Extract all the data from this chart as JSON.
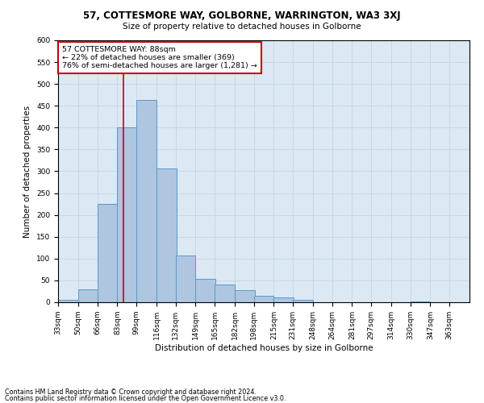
{
  "title1": "57, COTTESMORE WAY, GOLBORNE, WARRINGTON, WA3 3XJ",
  "title2": "Size of property relative to detached houses in Golborne",
  "xlabel": "Distribution of detached houses by size in Golborne",
  "ylabel": "Number of detached properties",
  "footer1": "Contains HM Land Registry data © Crown copyright and database right 2024.",
  "footer2": "Contains public sector information licensed under the Open Government Licence v3.0.",
  "annotation_line1": "57 COTTESMORE WAY: 88sqm",
  "annotation_line2": "← 22% of detached houses are smaller (369)",
  "annotation_line3": "76% of semi-detached houses are larger (1,281) →",
  "bar_left_edges": [
    33,
    50,
    66,
    83,
    99,
    116,
    132,
    149,
    165,
    182,
    198,
    215,
    231,
    248,
    264,
    281,
    297,
    314,
    330,
    347
  ],
  "bar_heights": [
    5,
    30,
    225,
    401,
    463,
    307,
    108,
    54,
    40,
    27,
    14,
    11,
    5,
    0,
    0,
    0,
    0,
    0,
    2,
    0
  ],
  "bin_width": 17,
  "categories": [
    "33sqm",
    "50sqm",
    "66sqm",
    "83sqm",
    "99sqm",
    "116sqm",
    "132sqm",
    "149sqm",
    "165sqm",
    "182sqm",
    "198sqm",
    "215sqm",
    "231sqm",
    "248sqm",
    "264sqm",
    "281sqm",
    "297sqm",
    "314sqm",
    "330sqm",
    "347sqm",
    "363sqm"
  ],
  "bar_color": "#aec6df",
  "bar_edge_color": "#5a9ac8",
  "grid_color": "#c8d8e8",
  "background_color": "#dce8f4",
  "vline_color": "#cc0000",
  "vline_x": 88,
  "ylim": [
    0,
    600
  ],
  "yticks": [
    0,
    50,
    100,
    150,
    200,
    250,
    300,
    350,
    400,
    450,
    500,
    550,
    600
  ],
  "annotation_box_color": "white",
  "annotation_box_edge": "#cc0000",
  "title_fontsize": 8.5,
  "subtitle_fontsize": 7.5,
  "tick_fontsize": 6.5,
  "ylabel_fontsize": 7.5,
  "xlabel_fontsize": 7.5,
  "annotation_fontsize": 6.8,
  "footer_fontsize": 5.8
}
